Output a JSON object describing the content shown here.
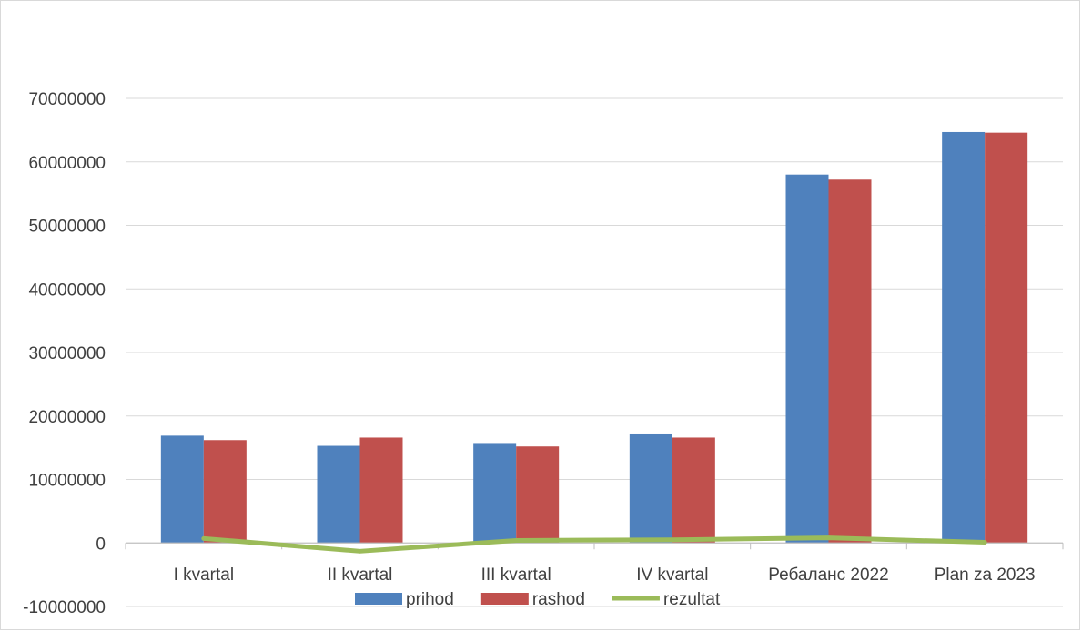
{
  "chart_data": {
    "type": "bar",
    "title": "",
    "xlabel": "",
    "ylabel": "",
    "categories": [
      "I kvartal",
      "II kvartal",
      "III kvartal",
      "IV kvartal",
      "Ребаланс 2022",
      "Plan za 2023"
    ],
    "series": [
      {
        "name": "prihod",
        "type": "bar",
        "color": "#4f81bd",
        "values": [
          16900000,
          15300000,
          15600000,
          17100000,
          58000000,
          64700000
        ]
      },
      {
        "name": "rashod",
        "type": "bar",
        "color": "#c0504d",
        "values": [
          16200000,
          16600000,
          15200000,
          16600000,
          57200000,
          64600000
        ]
      },
      {
        "name": "rezultat",
        "type": "line",
        "color": "#9bbb59",
        "values": [
          700000,
          -1300000,
          400000,
          500000,
          800000,
          100000
        ]
      }
    ],
    "ylim": [
      -10000000,
      70000000
    ],
    "yticks": [
      -10000000,
      0,
      10000000,
      20000000,
      30000000,
      40000000,
      50000000,
      60000000,
      70000000
    ],
    "grid": true,
    "legend_position": "bottom"
  }
}
